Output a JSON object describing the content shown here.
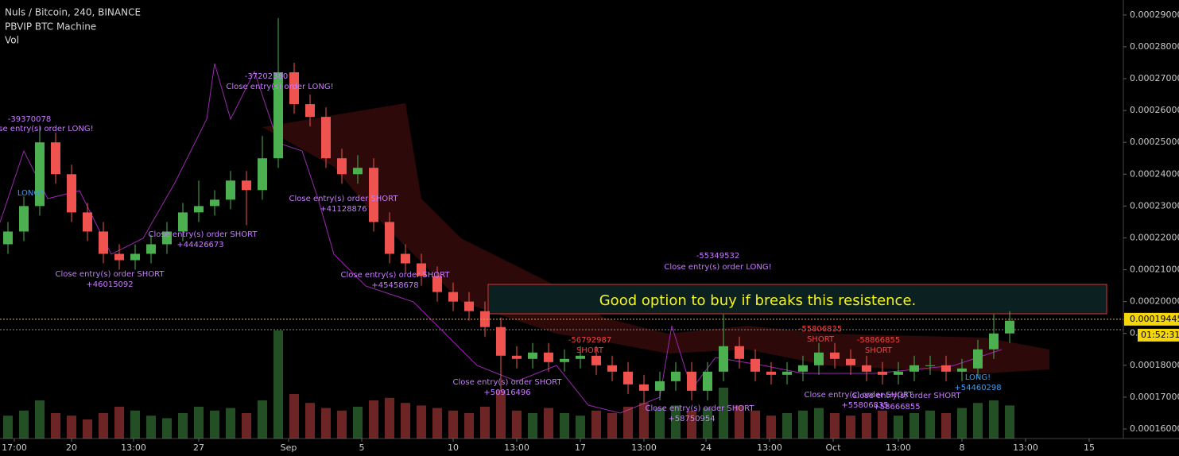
{
  "chart_data": {
    "type": "candlestick",
    "title": "Nuls / Bitcoin, 240, BINANCE",
    "indicators": [
      "PBVIP BTC Machine",
      "Vol"
    ],
    "annotation_box": "Good option to buy if breaks this resistence.",
    "last_price": {
      "value": 0.00019445,
      "label": "0.00019445"
    },
    "countdown": "01:52:31",
    "up_color": "#4caf50",
    "down_color": "#ef5350",
    "grid": false,
    "ylim": [
      0.000157,
      0.0002947
    ],
    "yticks": [
      {
        "value": 0.00016,
        "label": "0.00016000"
      },
      {
        "value": 0.00017,
        "label": "0.00017000"
      },
      {
        "value": 0.00018,
        "label": "0.00018000"
      },
      {
        "value": 0.00019,
        "label": "0.00019000"
      },
      {
        "value": 0.0002,
        "label": "0.00020000"
      },
      {
        "value": 0.00021,
        "label": "0.00021000"
      },
      {
        "value": 0.00022,
        "label": "0.00022000"
      },
      {
        "value": 0.00023,
        "label": "0.00023000"
      },
      {
        "value": 0.00024,
        "label": "0.00024000"
      },
      {
        "value": 0.00025,
        "label": "0.00025000"
      },
      {
        "value": 0.00026,
        "label": "0.00026000"
      },
      {
        "value": 0.00027,
        "label": "0.00027000"
      },
      {
        "value": 0.00028,
        "label": "0.00028000"
      },
      {
        "value": 0.00029,
        "label": "0.00029000"
      }
    ],
    "xlim": [
      -0.5,
      70.15
    ],
    "xticks": [
      {
        "value": 0.4,
        "label": "17:00"
      },
      {
        "value": 4,
        "label": "20"
      },
      {
        "value": 7.9,
        "label": "13:00"
      },
      {
        "value": 12,
        "label": "27"
      },
      {
        "value": 17.65,
        "label": "Sep"
      },
      {
        "value": 22.25,
        "label": "5"
      },
      {
        "value": 28,
        "label": "10"
      },
      {
        "value": 32,
        "label": "13:00"
      },
      {
        "value": 36,
        "label": "17"
      },
      {
        "value": 40,
        "label": "13:00"
      },
      {
        "value": 43.9,
        "label": "24"
      },
      {
        "value": 47.9,
        "label": "13:00"
      },
      {
        "value": 51.9,
        "label": "Oct"
      },
      {
        "value": 56,
        "label": "13:00"
      },
      {
        "value": 60,
        "label": "8"
      },
      {
        "value": 64,
        "label": "13:00"
      },
      {
        "value": 68,
        "label": "15"
      }
    ],
    "x": [
      0,
      1,
      2,
      3,
      4,
      5,
      6,
      7,
      8,
      9,
      10,
      11,
      12,
      13,
      14,
      15,
      16,
      17,
      18,
      19,
      20,
      21,
      22,
      23,
      24,
      25,
      26,
      27,
      28,
      29,
      30,
      31,
      32,
      33,
      34,
      35,
      36,
      37,
      38,
      39,
      40,
      41,
      42,
      43,
      44,
      45,
      46,
      47,
      48,
      49,
      50,
      51,
      52,
      53,
      54,
      55,
      56,
      57,
      58,
      59,
      60,
      61,
      62,
      63
    ],
    "open": [
      0.000218,
      0.000222,
      0.00023,
      0.00025,
      0.00024,
      0.000228,
      0.000222,
      0.000215,
      0.000213,
      0.000215,
      0.000218,
      0.000222,
      0.000228,
      0.00023,
      0.000232,
      0.000238,
      0.000235,
      0.000245,
      0.000272,
      0.000262,
      0.000258,
      0.000245,
      0.00024,
      0.000242,
      0.000225,
      0.000215,
      0.000212,
      0.000208,
      0.000203,
      0.0002,
      0.000197,
      0.000192,
      0.000183,
      0.000182,
      0.000184,
      0.000181,
      0.000182,
      0.000183,
      0.00018,
      0.000178,
      0.000174,
      0.000172,
      0.000175,
      0.000178,
      0.000172,
      0.000178,
      0.000186,
      0.000182,
      0.000178,
      0.000177,
      0.000178,
      0.00018,
      0.000184,
      0.000182,
      0.00018,
      0.000178,
      0.000177,
      0.000178,
      0.00018,
      0.00018,
      0.000178,
      0.000179,
      0.000185,
      0.00019
    ],
    "high": [
      0.000225,
      0.000233,
      0.000255,
      0.000253,
      0.000243,
      0.000231,
      0.000225,
      0.000218,
      0.000218,
      0.000221,
      0.000225,
      0.000231,
      0.000238,
      0.000235,
      0.000241,
      0.000241,
      0.000252,
      0.000289,
      0.000275,
      0.000265,
      0.000261,
      0.000248,
      0.000246,
      0.000245,
      0.000228,
      0.000218,
      0.000215,
      0.000211,
      0.000206,
      0.000203,
      0.0002,
      0.000195,
      0.000186,
      0.000187,
      0.000187,
      0.000185,
      0.000186,
      0.000186,
      0.000183,
      0.000181,
      0.000177,
      0.000178,
      0.000181,
      0.000181,
      0.000181,
      0.000196,
      0.000189,
      0.000185,
      0.000181,
      0.000181,
      0.000183,
      0.000187,
      0.000187,
      0.000185,
      0.000183,
      0.000181,
      0.000181,
      0.000183,
      0.000183,
      0.000183,
      0.000182,
      0.000188,
      0.000196,
      0.000197
    ],
    "low": [
      0.000215,
      0.000219,
      0.000227,
      0.000237,
      0.000225,
      0.000219,
      0.000212,
      0.00021,
      0.00021,
      0.000212,
      0.000215,
      0.000219,
      0.000225,
      0.000227,
      0.000229,
      0.000224,
      0.000232,
      0.000242,
      0.000259,
      0.000255,
      0.000242,
      0.000237,
      0.000237,
      0.000222,
      0.000212,
      0.000209,
      0.000205,
      0.0002,
      0.000197,
      0.000194,
      0.000189,
      0.000172,
      0.000179,
      0.000179,
      0.000178,
      0.000178,
      0.000179,
      0.000177,
      0.000175,
      0.000171,
      0.000168,
      0.000169,
      0.000172,
      0.000169,
      0.000169,
      0.000175,
      0.000179,
      0.000175,
      0.000174,
      0.000174,
      0.000175,
      0.000177,
      0.000179,
      0.000177,
      0.000175,
      0.000174,
      0.000174,
      0.000175,
      0.000177,
      0.000175,
      0.000175,
      0.000176,
      0.000182,
      0.000187
    ],
    "close": [
      0.000222,
      0.00023,
      0.00025,
      0.00024,
      0.000228,
      0.000222,
      0.000215,
      0.000213,
      0.000215,
      0.000218,
      0.000222,
      0.000228,
      0.00023,
      0.000232,
      0.000238,
      0.000235,
      0.000245,
      0.000272,
      0.000262,
      0.000258,
      0.000245,
      0.00024,
      0.000242,
      0.000225,
      0.000215,
      0.000212,
      0.000208,
      0.000203,
      0.0002,
      0.000197,
      0.000192,
      0.000183,
      0.000182,
      0.000184,
      0.000181,
      0.000182,
      0.000183,
      0.00018,
      0.000178,
      0.000174,
      0.000172,
      0.000175,
      0.000178,
      0.000172,
      0.000178,
      0.000186,
      0.000182,
      0.000178,
      0.000177,
      0.000178,
      0.00018,
      0.000184,
      0.000182,
      0.00018,
      0.000178,
      0.000177,
      0.000178,
      0.00018,
      0.00018,
      0.000178,
      0.000179,
      0.000185,
      0.00019,
      0.000194
    ],
    "volume": [
      18,
      22,
      30,
      20,
      18,
      15,
      20,
      25,
      22,
      18,
      16,
      20,
      25,
      22,
      24,
      20,
      30,
      85,
      35,
      28,
      24,
      22,
      25,
      30,
      32,
      28,
      26,
      24,
      22,
      20,
      25,
      38,
      22,
      20,
      24,
      20,
      18,
      22,
      20,
      25,
      28,
      24,
      26,
      22,
      24,
      40,
      26,
      22,
      18,
      20,
      22,
      24,
      20,
      18,
      20,
      22,
      18,
      20,
      22,
      20,
      24,
      28,
      30,
      26
    ],
    "vlim": [
      0,
      100
    ],
    "annotations": [
      {
        "text": "-39370078",
        "color": "#c77dff"
      },
      {
        "text": "Close entry(s) order LONG!",
        "color": "#c77dff"
      },
      {
        "text": "LONG!",
        "color": "#3d9cf0"
      },
      {
        "text": "Close entry(s) order SHORT",
        "color": "#c77dff"
      },
      {
        "text": "+46015092",
        "color": "#c77dff"
      },
      {
        "text": "Close entry(s) order SHORT",
        "color": "#c77dff"
      },
      {
        "text": "+44426673",
        "color": "#c77dff"
      },
      {
        "text": "-37202380",
        "color": "#c77dff"
      },
      {
        "text": "Close entry(s) order LONG!",
        "color": "#c77dff"
      },
      {
        "text": "Close entry(s) order SHORT",
        "color": "#c77dff"
      },
      {
        "text": "+41128876",
        "color": "#c77dff"
      },
      {
        "text": "Close entry(s) order SHORT",
        "color": "#c77dff"
      },
      {
        "text": "+45458678",
        "color": "#c77dff"
      },
      {
        "text": "Close entry(s) order SHORT",
        "color": "#c77dff"
      },
      {
        "text": "+50916496",
        "color": "#c77dff"
      },
      {
        "text": "-56792987",
        "color": "#ef4444"
      },
      {
        "text": "SHORT",
        "color": "#ef4444"
      },
      {
        "text": "-55349532",
        "color": "#c77dff"
      },
      {
        "text": "Close entry(s) order LONG!",
        "color": "#c77dff"
      },
      {
        "text": "Close entry(s) order SHORT",
        "color": "#c77dff"
      },
      {
        "text": "+58750954",
        "color": "#c77dff"
      },
      {
        "text": "-55806835",
        "color": "#ef4444"
      },
      {
        "text": "SHORT",
        "color": "#ef4444"
      },
      {
        "text": "-58866855",
        "color": "#ef4444"
      },
      {
        "text": "SHORT",
        "color": "#ef4444"
      },
      {
        "text": "Close entry(s) order SHORT",
        "color": "#c77dff"
      },
      {
        "text": "+55806835",
        "color": "#c77dff"
      },
      {
        "text": "Close entry(s) order SHORT",
        "color": "#c77dff"
      },
      {
        "text": "+58666855",
        "color": "#c77dff"
      },
      {
        "text": "LONG!",
        "color": "#3d9cf0"
      },
      {
        "text": "+54460298",
        "color": "#3d9cf0"
      }
    ]
  }
}
